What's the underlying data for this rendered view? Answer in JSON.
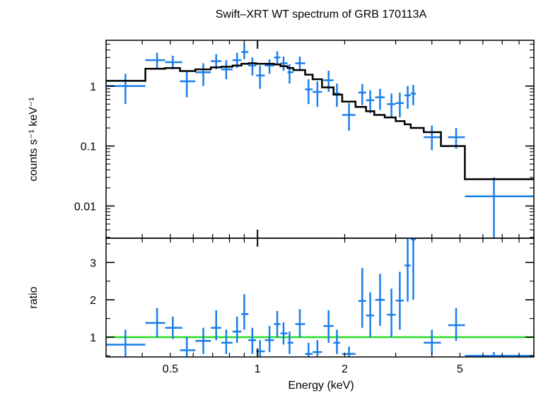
{
  "chart_data": [
    {
      "type": "scatter",
      "title": "Swift–XRT WT spectrum of GRB 170113A",
      "ylabel": "counts s⁻¹ keV⁻¹",
      "xlabel": "",
      "xscale": "log",
      "yscale": "log",
      "xlim": [
        0.3,
        9.0
      ],
      "ylim": [
        0.0029,
        5.8
      ],
      "x_ticks": [
        0.5,
        1,
        2,
        5
      ],
      "y_ticks": [
        {
          "value": 0.01,
          "label": "0.01"
        },
        {
          "value": 0.1,
          "label": "0.1"
        },
        {
          "value": 1,
          "label": "1"
        }
      ],
      "colors": {
        "data": "#1a7ee8",
        "model": "#000000"
      },
      "series": [
        {
          "kind": "data-crosses",
          "points": [
            {
              "x": 0.35,
              "xlo": 0.3,
              "xhi": 0.41,
              "y": 1.0,
              "ylo": 0.5,
              "yhi": 1.6
            },
            {
              "x": 0.45,
              "xlo": 0.41,
              "xhi": 0.48,
              "y": 2.7,
              "ylo": 2.0,
              "yhi": 3.6
            },
            {
              "x": 0.51,
              "xlo": 0.48,
              "xhi": 0.55,
              "y": 2.5,
              "ylo": 1.9,
              "yhi": 3.2
            },
            {
              "x": 0.57,
              "xlo": 0.54,
              "xhi": 0.61,
              "y": 1.2,
              "ylo": 0.65,
              "yhi": 1.8
            },
            {
              "x": 0.65,
              "xlo": 0.61,
              "xhi": 0.69,
              "y": 1.7,
              "ylo": 1.0,
              "yhi": 2.4
            },
            {
              "x": 0.72,
              "xlo": 0.69,
              "xhi": 0.75,
              "y": 2.6,
              "ylo": 1.9,
              "yhi": 3.4
            },
            {
              "x": 0.78,
              "xlo": 0.75,
              "xhi": 0.82,
              "y": 1.9,
              "ylo": 1.3,
              "yhi": 2.7
            },
            {
              "x": 0.85,
              "xlo": 0.82,
              "xhi": 0.88,
              "y": 2.7,
              "ylo": 2.0,
              "yhi": 3.6
            },
            {
              "x": 0.9,
              "xlo": 0.88,
              "xhi": 0.93,
              "y": 3.7,
              "ylo": 2.8,
              "yhi": 5.0
            },
            {
              "x": 0.96,
              "xlo": 0.93,
              "xhi": 0.99,
              "y": 2.2,
              "ylo": 1.5,
              "yhi": 3.0
            },
            {
              "x": 1.02,
              "xlo": 0.99,
              "xhi": 1.06,
              "y": 1.5,
              "ylo": 0.9,
              "yhi": 2.2
            },
            {
              "x": 1.1,
              "xlo": 1.06,
              "xhi": 1.14,
              "y": 2.2,
              "ylo": 1.6,
              "yhi": 2.8
            },
            {
              "x": 1.17,
              "xlo": 1.14,
              "xhi": 1.2,
              "y": 3.0,
              "ylo": 2.2,
              "yhi": 3.8
            },
            {
              "x": 1.23,
              "xlo": 1.2,
              "xhi": 1.27,
              "y": 2.4,
              "ylo": 1.8,
              "yhi": 3.1
            },
            {
              "x": 1.29,
              "xlo": 1.27,
              "xhi": 1.33,
              "y": 1.7,
              "ylo": 1.1,
              "yhi": 2.3
            },
            {
              "x": 1.4,
              "xlo": 1.35,
              "xhi": 1.46,
              "y": 2.4,
              "ylo": 1.8,
              "yhi": 3.1
            },
            {
              "x": 1.5,
              "xlo": 1.46,
              "xhi": 1.55,
              "y": 0.88,
              "ylo": 0.5,
              "yhi": 1.3
            },
            {
              "x": 1.61,
              "xlo": 1.55,
              "xhi": 1.67,
              "y": 0.8,
              "ylo": 0.45,
              "yhi": 1.2
            },
            {
              "x": 1.76,
              "xlo": 1.69,
              "xhi": 1.83,
              "y": 1.25,
              "ylo": 0.8,
              "yhi": 1.8
            },
            {
              "x": 1.88,
              "xlo": 1.83,
              "xhi": 1.93,
              "y": 0.75,
              "ylo": 0.45,
              "yhi": 1.1
            },
            {
              "x": 2.07,
              "xlo": 1.96,
              "xhi": 2.18,
              "y": 0.33,
              "ylo": 0.18,
              "yhi": 0.52
            },
            {
              "x": 2.3,
              "xlo": 2.23,
              "xhi": 2.37,
              "y": 0.78,
              "ylo": 0.48,
              "yhi": 1.08
            },
            {
              "x": 2.45,
              "xlo": 2.37,
              "xhi": 2.53,
              "y": 0.58,
              "ylo": 0.35,
              "yhi": 0.85
            },
            {
              "x": 2.65,
              "xlo": 2.55,
              "xhi": 2.75,
              "y": 0.65,
              "ylo": 0.4,
              "yhi": 0.9
            },
            {
              "x": 2.9,
              "xlo": 2.8,
              "xhi": 3.0,
              "y": 0.5,
              "ylo": 0.3,
              "yhi": 0.75
            },
            {
              "x": 3.1,
              "xlo": 3.0,
              "xhi": 3.2,
              "y": 0.52,
              "ylo": 0.3,
              "yhi": 0.78
            },
            {
              "x": 3.3,
              "xlo": 3.22,
              "xhi": 3.38,
              "y": 0.7,
              "ylo": 0.42,
              "yhi": 1.0
            },
            {
              "x": 3.45,
              "xlo": 3.38,
              "xhi": 3.52,
              "y": 0.75,
              "ylo": 0.48,
              "yhi": 1.05
            },
            {
              "x": 4.0,
              "xlo": 3.75,
              "xhi": 4.3,
              "y": 0.14,
              "ylo": 0.085,
              "yhi": 0.22
            },
            {
              "x": 4.85,
              "xlo": 4.55,
              "xhi": 5.2,
              "y": 0.14,
              "ylo": 0.09,
              "yhi": 0.2
            },
            {
              "x": 6.55,
              "xlo": 5.2,
              "xhi": 9.0,
              "y": 0.0145,
              "ylo": 0.0029,
              "yhi": 0.03
            }
          ]
        },
        {
          "kind": "model-step",
          "edges": [
            0.3,
            0.41,
            0.48,
            0.54,
            0.61,
            0.69,
            0.75,
            0.82,
            0.88,
            0.93,
            0.99,
            1.06,
            1.14,
            1.2,
            1.27,
            1.33,
            1.46,
            1.55,
            1.67,
            1.83,
            1.96,
            2.18,
            2.37,
            2.53,
            2.75,
            3.0,
            3.22,
            3.38,
            3.75,
            4.3,
            5.2,
            9.0
          ],
          "values": [
            1.22,
            1.95,
            2.0,
            1.78,
            1.9,
            2.05,
            2.1,
            2.2,
            2.35,
            2.4,
            2.35,
            2.35,
            2.3,
            2.15,
            2.0,
            1.85,
            1.55,
            1.3,
            0.95,
            0.72,
            0.55,
            0.45,
            0.38,
            0.33,
            0.3,
            0.26,
            0.23,
            0.2,
            0.17,
            0.1,
            0.028
          ]
        }
      ]
    },
    {
      "type": "scatter",
      "title": "",
      "ylabel": "ratio",
      "xlabel": "Energy (keV)",
      "xscale": "log",
      "yscale": "linear",
      "xlim": [
        0.3,
        9.0
      ],
      "ylim": [
        0.47,
        3.65
      ],
      "x_ticks": [
        {
          "value": 0.5,
          "label": "0.5"
        },
        {
          "value": 1,
          "label": "1"
        },
        {
          "value": 2,
          "label": "2"
        },
        {
          "value": 5,
          "label": "5"
        }
      ],
      "y_ticks": [
        {
          "value": 1,
          "label": "1"
        },
        {
          "value": 2,
          "label": "2"
        },
        {
          "value": 3,
          "label": "3"
        }
      ],
      "reference_line": {
        "y": 1,
        "color": "#22dd22"
      },
      "colors": {
        "data": "#1a7ee8"
      },
      "series": [
        {
          "kind": "data-crosses",
          "points": [
            {
              "x": 0.35,
              "xlo": 0.3,
              "xhi": 0.41,
              "y": 0.8,
              "ylo": 0.47,
              "yhi": 1.2
            },
            {
              "x": 0.45,
              "xlo": 0.41,
              "xhi": 0.48,
              "y": 1.38,
              "ylo": 1.0,
              "yhi": 1.78
            },
            {
              "x": 0.51,
              "xlo": 0.48,
              "xhi": 0.55,
              "y": 1.25,
              "ylo": 0.95,
              "yhi": 1.55
            },
            {
              "x": 0.57,
              "xlo": 0.54,
              "xhi": 0.61,
              "y": 0.65,
              "ylo": 0.47,
              "yhi": 1.0
            },
            {
              "x": 0.65,
              "xlo": 0.61,
              "xhi": 0.69,
              "y": 0.9,
              "ylo": 0.55,
              "yhi": 1.25
            },
            {
              "x": 0.72,
              "xlo": 0.69,
              "xhi": 0.75,
              "y": 1.25,
              "ylo": 0.92,
              "yhi": 1.72
            },
            {
              "x": 0.78,
              "xlo": 0.75,
              "xhi": 0.82,
              "y": 0.85,
              "ylo": 0.55,
              "yhi": 1.2
            },
            {
              "x": 0.85,
              "xlo": 0.82,
              "xhi": 0.88,
              "y": 1.15,
              "ylo": 0.85,
              "yhi": 1.55
            },
            {
              "x": 0.9,
              "xlo": 0.88,
              "xhi": 0.93,
              "y": 1.62,
              "ylo": 1.2,
              "yhi": 2.15
            },
            {
              "x": 0.96,
              "xlo": 0.93,
              "xhi": 0.99,
              "y": 0.92,
              "ylo": 0.55,
              "yhi": 1.25
            },
            {
              "x": 1.02,
              "xlo": 0.99,
              "xhi": 1.06,
              "y": 0.62,
              "ylo": 0.47,
              "yhi": 0.92
            },
            {
              "x": 1.1,
              "xlo": 1.06,
              "xhi": 1.14,
              "y": 0.92,
              "ylo": 0.6,
              "yhi": 1.3
            },
            {
              "x": 1.17,
              "xlo": 1.14,
              "xhi": 1.2,
              "y": 1.35,
              "ylo": 1.0,
              "yhi": 1.7
            },
            {
              "x": 1.23,
              "xlo": 1.2,
              "xhi": 1.27,
              "y": 1.1,
              "ylo": 0.8,
              "yhi": 1.4
            },
            {
              "x": 1.29,
              "xlo": 1.27,
              "xhi": 1.33,
              "y": 0.85,
              "ylo": 0.55,
              "yhi": 1.15
            },
            {
              "x": 1.4,
              "xlo": 1.35,
              "xhi": 1.46,
              "y": 1.35,
              "ylo": 1.0,
              "yhi": 1.75
            },
            {
              "x": 1.5,
              "xlo": 1.46,
              "xhi": 1.55,
              "y": 0.55,
              "ylo": 0.47,
              "yhi": 0.85
            },
            {
              "x": 1.61,
              "xlo": 1.55,
              "xhi": 1.67,
              "y": 0.6,
              "ylo": 0.47,
              "yhi": 0.92
            },
            {
              "x": 1.76,
              "xlo": 1.69,
              "xhi": 1.83,
              "y": 1.3,
              "ylo": 0.85,
              "yhi": 1.72
            },
            {
              "x": 1.88,
              "xlo": 1.83,
              "xhi": 1.93,
              "y": 0.85,
              "ylo": 0.55,
              "yhi": 1.2
            },
            {
              "x": 2.07,
              "xlo": 1.96,
              "xhi": 2.18,
              "y": 0.55,
              "ylo": 0.47,
              "yhi": 0.75
            },
            {
              "x": 2.3,
              "xlo": 2.23,
              "xhi": 2.37,
              "y": 1.97,
              "ylo": 1.25,
              "yhi": 2.85
            },
            {
              "x": 2.45,
              "xlo": 2.37,
              "xhi": 2.53,
              "y": 1.58,
              "ylo": 1.0,
              "yhi": 2.2
            },
            {
              "x": 2.65,
              "xlo": 2.55,
              "xhi": 2.75,
              "y": 2.0,
              "ylo": 1.3,
              "yhi": 2.7
            },
            {
              "x": 2.9,
              "xlo": 2.8,
              "xhi": 3.0,
              "y": 1.6,
              "ylo": 1.0,
              "yhi": 2.3
            },
            {
              "x": 3.1,
              "xlo": 3.0,
              "xhi": 3.2,
              "y": 1.98,
              "ylo": 1.2,
              "yhi": 2.75
            },
            {
              "x": 3.3,
              "xlo": 3.22,
              "xhi": 3.38,
              "y": 2.92,
              "ylo": 1.95,
              "yhi": 3.65
            },
            {
              "x": 3.45,
              "xlo": 3.38,
              "xhi": 3.52,
              "y": 3.62,
              "ylo": 2.0,
              "yhi": 3.65
            },
            {
              "x": 4.0,
              "xlo": 3.75,
              "xhi": 4.3,
              "y": 0.85,
              "ylo": 0.55,
              "yhi": 1.2
            },
            {
              "x": 4.85,
              "xlo": 4.55,
              "xhi": 5.2,
              "y": 1.32,
              "ylo": 0.9,
              "yhi": 1.78
            },
            {
              "x": 6.55,
              "xlo": 5.2,
              "xhi": 9.0,
              "y": 0.5,
              "ylo": 0.47,
              "yhi": 0.6
            }
          ]
        }
      ]
    }
  ]
}
